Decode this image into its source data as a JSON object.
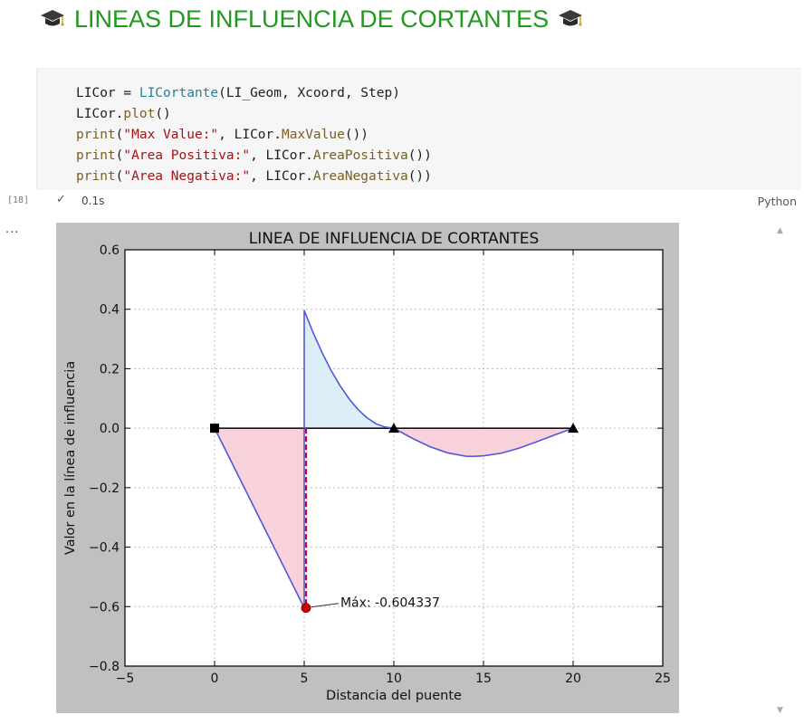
{
  "heading": {
    "title": "LINEAS DE INFLUENCIA DE CORTANTES",
    "icon": "graduation-cap-icon"
  },
  "cell": {
    "exec_count": "[18]",
    "lines": [
      [
        {
          "t": "LICor = ",
          "c": ""
        },
        {
          "t": "LICortante",
          "c": "fn"
        },
        {
          "t": "(LI_Geom, Xcoord, Step)",
          "c": ""
        }
      ],
      [
        {
          "t": "LICor.",
          "c": ""
        },
        {
          "t": "plot",
          "c": "mth"
        },
        {
          "t": "()",
          "c": ""
        }
      ],
      [
        {
          "t": "print",
          "c": "mth"
        },
        {
          "t": "(",
          "c": ""
        },
        {
          "t": "\"Max Value:\"",
          "c": "str"
        },
        {
          "t": ", LICor.",
          "c": ""
        },
        {
          "t": "MaxValue",
          "c": "mth"
        },
        {
          "t": "())",
          "c": ""
        }
      ],
      [
        {
          "t": "print",
          "c": "mth"
        },
        {
          "t": "(",
          "c": ""
        },
        {
          "t": "\"Area Positiva:\"",
          "c": "str"
        },
        {
          "t": ", LICor.",
          "c": ""
        },
        {
          "t": "AreaPositiva",
          "c": "mth"
        },
        {
          "t": "())",
          "c": ""
        }
      ],
      [
        {
          "t": "print",
          "c": "mth"
        },
        {
          "t": "(",
          "c": ""
        },
        {
          "t": "\"Area Negativa:\"",
          "c": "str"
        },
        {
          "t": ", LICor.",
          "c": ""
        },
        {
          "t": "AreaNegativa",
          "c": "mth"
        },
        {
          "t": "())",
          "c": ""
        }
      ]
    ],
    "status_icon": "checkmark-icon",
    "exec_time": "0.1s",
    "language": "Python"
  },
  "output": {
    "more_label": "..."
  },
  "colors": {
    "heading": "#1f9a1f",
    "curve": "#5555dd",
    "fill_positive": "#dceef6",
    "fill_negative": "#f8d2da",
    "max_line": "#cc0033",
    "figure_bg": "#c0c0c0"
  },
  "chart_data": {
    "type": "line",
    "title": "LINEA DE INFLUENCIA DE CORTANTES",
    "xlabel": "Distancia del puente",
    "ylabel": "Valor en la línea de influencia",
    "xlim": [
      -5,
      25
    ],
    "ylim": [
      -0.8,
      0.6
    ],
    "xticks": [
      -5,
      0,
      5,
      10,
      15,
      20,
      25
    ],
    "yticks": [
      -0.8,
      -0.6,
      -0.4,
      -0.2,
      0.0,
      0.2,
      0.4,
      0.6
    ],
    "xtick_labels": [
      "−5",
      "0",
      "5",
      "10",
      "15",
      "20",
      "25"
    ],
    "ytick_labels": [
      "−0.8",
      "−0.6",
      "−0.4",
      "−0.2",
      "0.0",
      "0.2",
      "0.4",
      "0.6"
    ],
    "grid": true,
    "series": [
      {
        "x": [
          0,
          5,
          5,
          5.5,
          6,
          6.5,
          7,
          7.5,
          8,
          8.5,
          9,
          9.5,
          10,
          11,
          12,
          13,
          14,
          14.4,
          15,
          16,
          17,
          18,
          19,
          20
        ],
        "y": [
          0,
          -0.604,
          0.396,
          0.321,
          0.254,
          0.194,
          0.143,
          0.099,
          0.063,
          0.035,
          0.015,
          0.004,
          0,
          -0.033,
          -0.062,
          -0.083,
          -0.094,
          -0.095,
          -0.093,
          -0.084,
          -0.067,
          -0.045,
          -0.022,
          0
        ]
      }
    ],
    "supports": [
      {
        "x": 0,
        "shape": "square"
      },
      {
        "x": 10,
        "shape": "triangle"
      },
      {
        "x": 20,
        "shape": "triangle"
      }
    ],
    "max_point": {
      "x": 5.1,
      "y": -0.604337
    },
    "annotation": {
      "text": "Máx: -0.604337"
    }
  }
}
